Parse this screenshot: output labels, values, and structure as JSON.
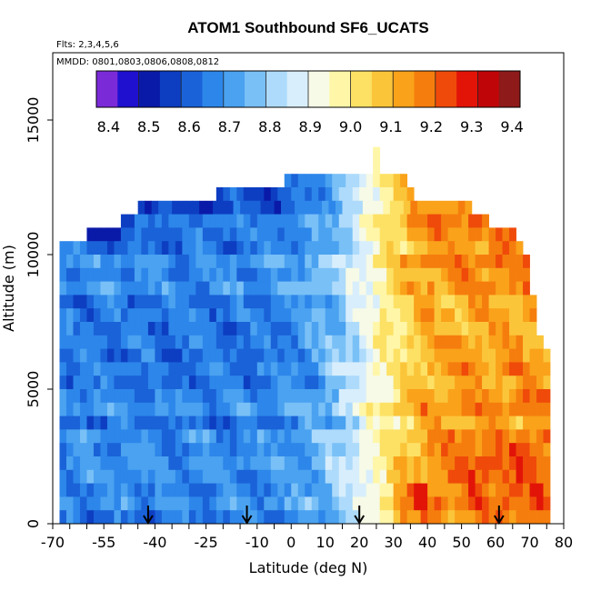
{
  "chart_data": {
    "type": "heatmap",
    "title": "ATOM1 Southbound SF6_UCATS",
    "subtitle_flights": "Flts: 2,3,4,5,6",
    "subtitle_dates": "MMDD: 0801,0803,0806,0808,0812",
    "xlabel": "Latitude (deg N)",
    "ylabel": "Altitude (m)",
    "xlim": [
      -70,
      80
    ],
    "ylim": [
      0,
      17500
    ],
    "x_tick_labels": [
      "-70",
      "-55",
      "-40",
      "-25",
      "-10",
      "0",
      "10",
      "20",
      "30",
      "40",
      "50",
      "60",
      "70",
      "80"
    ],
    "y_tick_labels": [
      "0",
      "5000",
      "10000",
      "15000"
    ],
    "colorbar_tick_labels": [
      "8.4",
      "8.5",
      "8.6",
      "8.7",
      "8.8",
      "8.9",
      "9.0",
      "9.1",
      "9.2",
      "9.3",
      "9.4"
    ],
    "colorbar_min": 8.37,
    "colorbar_max": 9.42,
    "colorbar_colors": [
      "#7b2ad8",
      "#1f10d0",
      "#0a1aa8",
      "#0d3ec2",
      "#1a62d8",
      "#2d86ea",
      "#4aa2f0",
      "#79c0f7",
      "#aedbfb",
      "#d8eefc",
      "#f6fae6",
      "#fff6a8",
      "#fde165",
      "#fbc53a",
      "#f9a21a",
      "#f57d0d",
      "#ef4a0a",
      "#e21408",
      "#c00508",
      "#8e1a1a"
    ],
    "flight_markers_lat": [
      -42,
      -13,
      20,
      61
    ],
    "cell_height_m": 500,
    "cell_width_deg": 2,
    "profile": [
      {
        "alt": 13500,
        "lat_range": [
          24,
          26
        ]
      },
      {
        "alt": 13000,
        "lat_range": [
          24,
          26
        ]
      },
      {
        "alt": 12500,
        "lat_range": [
          -2,
          34
        ]
      },
      {
        "alt": 12000,
        "lat_range": [
          -22,
          36
        ]
      },
      {
        "alt": 11500,
        "lat_range": [
          -45,
          52
        ]
      },
      {
        "alt": 11000,
        "lat_range": [
          -50,
          58
        ]
      },
      {
        "alt": 10500,
        "lat_range": [
          -60,
          66
        ]
      },
      {
        "alt": 10000,
        "lat_range": [
          -68,
          68
        ]
      },
      {
        "alt": 9500,
        "lat_range": [
          -68,
          70
        ]
      },
      {
        "alt": 9000,
        "lat_range": [
          -68,
          70
        ]
      },
      {
        "alt": 8500,
        "lat_range": [
          -68,
          70
        ]
      },
      {
        "alt": 8000,
        "lat_range": [
          -68,
          72
        ]
      },
      {
        "alt": 7500,
        "lat_range": [
          -68,
          72
        ]
      },
      {
        "alt": 7000,
        "lat_range": [
          -68,
          72
        ]
      },
      {
        "alt": 6500,
        "lat_range": [
          -68,
          74
        ]
      },
      {
        "alt": 6000,
        "lat_range": [
          -68,
          76
        ]
      },
      {
        "alt": 5500,
        "lat_range": [
          -68,
          76
        ]
      },
      {
        "alt": 5000,
        "lat_range": [
          -68,
          76
        ]
      },
      {
        "alt": 4500,
        "lat_range": [
          -68,
          76
        ]
      },
      {
        "alt": 4000,
        "lat_range": [
          -68,
          76
        ]
      },
      {
        "alt": 3500,
        "lat_range": [
          -68,
          76
        ]
      },
      {
        "alt": 3000,
        "lat_range": [
          -68,
          76
        ]
      },
      {
        "alt": 2500,
        "lat_range": [
          -68,
          76
        ]
      },
      {
        "alt": 2000,
        "lat_range": [
          -68,
          76
        ]
      },
      {
        "alt": 1500,
        "lat_range": [
          -68,
          76
        ]
      },
      {
        "alt": 1000,
        "lat_range": [
          -68,
          76
        ]
      },
      {
        "alt": 500,
        "lat_range": [
          -68,
          76
        ]
      },
      {
        "alt": 0,
        "lat_range": [
          -68,
          76
        ]
      }
    ]
  }
}
